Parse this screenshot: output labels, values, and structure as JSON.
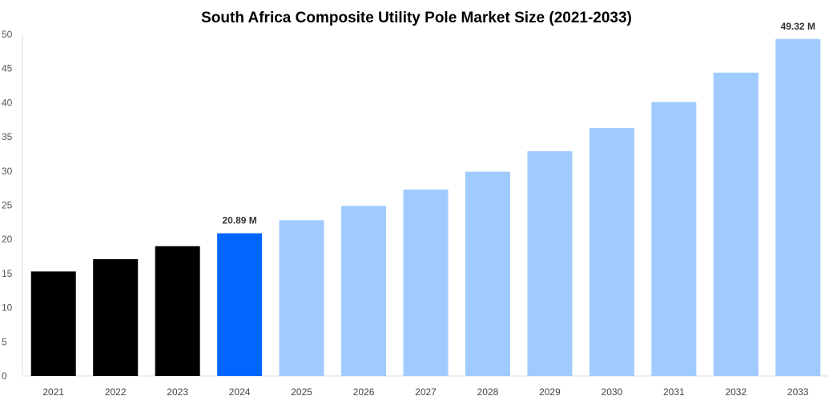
{
  "chart_data": {
    "type": "bar",
    "title": "South Africa Composite Utility Pole Market Size (2021-2033)",
    "categories": [
      "2021",
      "2022",
      "2023",
      "2024",
      "2025",
      "2026",
      "2027",
      "2028",
      "2029",
      "2030",
      "2031",
      "2032",
      "2033"
    ],
    "values": [
      15.3,
      17.1,
      19.0,
      20.89,
      22.8,
      24.9,
      27.3,
      29.9,
      32.9,
      36.3,
      40.1,
      44.4,
      49.32
    ],
    "data_labels": {
      "3": "20.89 M",
      "12": "49.32 M"
    },
    "ylim": [
      0,
      50
    ],
    "yticks": [
      0,
      5,
      10,
      15,
      20,
      25,
      30,
      35,
      40,
      45,
      50
    ],
    "xlabel": "",
    "ylabel": "",
    "grid": false,
    "colors": {
      "historical": "#000000",
      "base_year": "#0066ff",
      "forecast": "#a0cbff"
    }
  }
}
